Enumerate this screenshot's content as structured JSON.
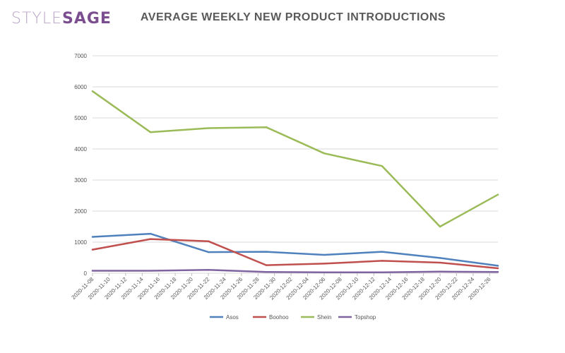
{
  "brand": {
    "part1": "STYLE",
    "part2": "SAGE"
  },
  "title": "AVERAGE WEEKLY NEW PRODUCT INTRODUCTIONS",
  "chart_data": {
    "type": "line",
    "title": "AVERAGE WEEKLY NEW PRODUCT INTRODUCTIONS",
    "xlabel": "",
    "ylabel": "",
    "ylim": [
      0,
      7000
    ],
    "yticks": [
      0,
      1000,
      2000,
      3000,
      4000,
      5000,
      6000,
      7000
    ],
    "grid": "horizontal",
    "legend_position": "bottom",
    "x": [
      "2020-11-08",
      "2020-11-10",
      "2020-11-12",
      "2020-11-14",
      "2020-11-16",
      "2020-11-18",
      "2020-11-20",
      "2020-11-22",
      "2020-11-24",
      "2020-11-26",
      "2020-11-28",
      "2020-11-30",
      "2020-12-02",
      "2020-12-04",
      "2020-12-06",
      "2020-12-08",
      "2020-12-10",
      "2020-12-12",
      "2020-12-14",
      "2020-12-16",
      "2020-12-18",
      "2020-12-20",
      "2020-12-22",
      "2020-12-24",
      "2020-12-26"
    ],
    "series": [
      {
        "name": "Asos",
        "color": "#4f81bd",
        "points": [
          [
            "2020-11-08",
            1170
          ],
          [
            "2020-11-15",
            1270
          ],
          [
            "2020-11-22",
            680
          ],
          [
            "2020-11-29",
            690
          ],
          [
            "2020-12-06",
            590
          ],
          [
            "2020-12-13",
            690
          ],
          [
            "2020-12-20",
            490
          ],
          [
            "2020-12-27",
            240
          ]
        ]
      },
      {
        "name": "Boohoo",
        "color": "#c0504d",
        "points": [
          [
            "2020-11-08",
            760
          ],
          [
            "2020-11-15",
            1100
          ],
          [
            "2020-11-22",
            1030
          ],
          [
            "2020-11-29",
            260
          ],
          [
            "2020-12-06",
            310
          ],
          [
            "2020-12-13",
            400
          ],
          [
            "2020-12-20",
            340
          ],
          [
            "2020-12-27",
            160
          ]
        ]
      },
      {
        "name": "Shein",
        "color": "#9bbb59",
        "points": [
          [
            "2020-11-08",
            5860
          ],
          [
            "2020-11-15",
            4540
          ],
          [
            "2020-11-22",
            4670
          ],
          [
            "2020-11-29",
            4700
          ],
          [
            "2020-12-06",
            3860
          ],
          [
            "2020-12-13",
            3450
          ],
          [
            "2020-12-20",
            1500
          ],
          [
            "2020-12-27",
            2530
          ]
        ]
      },
      {
        "name": "Topshop",
        "color": "#8064a2",
        "points": [
          [
            "2020-11-08",
            80
          ],
          [
            "2020-11-15",
            80
          ],
          [
            "2020-11-22",
            110
          ],
          [
            "2020-11-29",
            40
          ],
          [
            "2020-12-06",
            30
          ],
          [
            "2020-12-13",
            30
          ],
          [
            "2020-12-20",
            50
          ],
          [
            "2020-12-27",
            40
          ]
        ]
      }
    ]
  }
}
